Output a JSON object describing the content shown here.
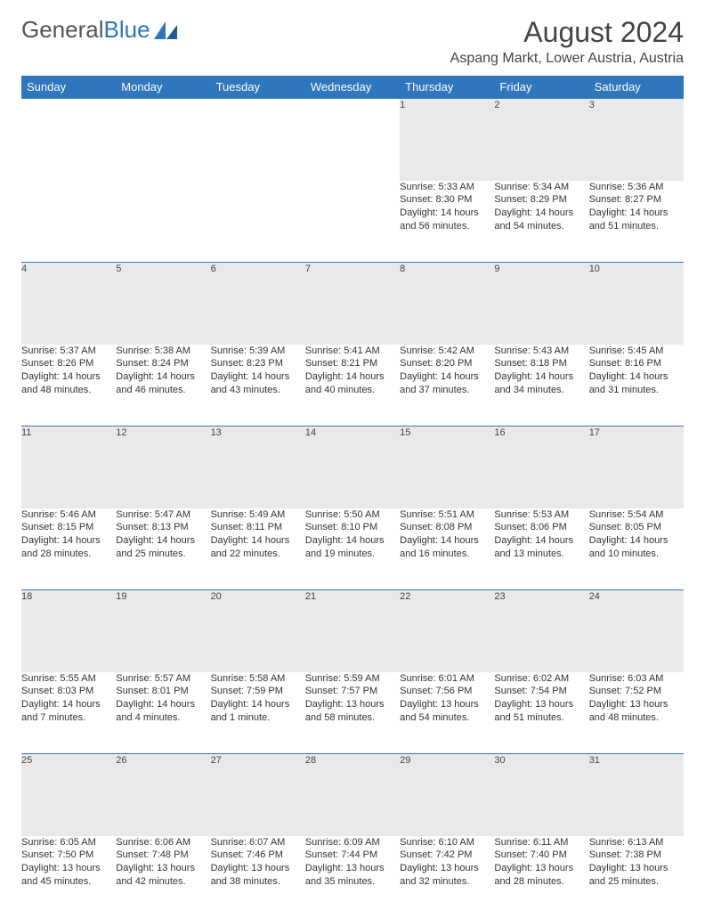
{
  "brand": {
    "text1": "General",
    "text2": "Blue"
  },
  "title": "August 2024",
  "location": "Aspang Markt, Lower Austria, Austria",
  "colors": {
    "header_bg": "#2f76bd",
    "header_text": "#ffffff",
    "daynum_bg": "#e9e9e9",
    "rule": "#2f76bd",
    "body_text": "#333333",
    "page_bg": "#ffffff"
  },
  "columns": [
    "Sunday",
    "Monday",
    "Tuesday",
    "Wednesday",
    "Thursday",
    "Friday",
    "Saturday"
  ],
  "weeks": [
    [
      null,
      null,
      null,
      null,
      {
        "n": "1",
        "sr": "Sunrise: 5:33 AM",
        "ss": "Sunset: 8:30 PM",
        "d1": "Daylight: 14 hours",
        "d2": "and 56 minutes."
      },
      {
        "n": "2",
        "sr": "Sunrise: 5:34 AM",
        "ss": "Sunset: 8:29 PM",
        "d1": "Daylight: 14 hours",
        "d2": "and 54 minutes."
      },
      {
        "n": "3",
        "sr": "Sunrise: 5:36 AM",
        "ss": "Sunset: 8:27 PM",
        "d1": "Daylight: 14 hours",
        "d2": "and 51 minutes."
      }
    ],
    [
      {
        "n": "4",
        "sr": "Sunrise: 5:37 AM",
        "ss": "Sunset: 8:26 PM",
        "d1": "Daylight: 14 hours",
        "d2": "and 48 minutes."
      },
      {
        "n": "5",
        "sr": "Sunrise: 5:38 AM",
        "ss": "Sunset: 8:24 PM",
        "d1": "Daylight: 14 hours",
        "d2": "and 46 minutes."
      },
      {
        "n": "6",
        "sr": "Sunrise: 5:39 AM",
        "ss": "Sunset: 8:23 PM",
        "d1": "Daylight: 14 hours",
        "d2": "and 43 minutes."
      },
      {
        "n": "7",
        "sr": "Sunrise: 5:41 AM",
        "ss": "Sunset: 8:21 PM",
        "d1": "Daylight: 14 hours",
        "d2": "and 40 minutes."
      },
      {
        "n": "8",
        "sr": "Sunrise: 5:42 AM",
        "ss": "Sunset: 8:20 PM",
        "d1": "Daylight: 14 hours",
        "d2": "and 37 minutes."
      },
      {
        "n": "9",
        "sr": "Sunrise: 5:43 AM",
        "ss": "Sunset: 8:18 PM",
        "d1": "Daylight: 14 hours",
        "d2": "and 34 minutes."
      },
      {
        "n": "10",
        "sr": "Sunrise: 5:45 AM",
        "ss": "Sunset: 8:16 PM",
        "d1": "Daylight: 14 hours",
        "d2": "and 31 minutes."
      }
    ],
    [
      {
        "n": "11",
        "sr": "Sunrise: 5:46 AM",
        "ss": "Sunset: 8:15 PM",
        "d1": "Daylight: 14 hours",
        "d2": "and 28 minutes."
      },
      {
        "n": "12",
        "sr": "Sunrise: 5:47 AM",
        "ss": "Sunset: 8:13 PM",
        "d1": "Daylight: 14 hours",
        "d2": "and 25 minutes."
      },
      {
        "n": "13",
        "sr": "Sunrise: 5:49 AM",
        "ss": "Sunset: 8:11 PM",
        "d1": "Daylight: 14 hours",
        "d2": "and 22 minutes."
      },
      {
        "n": "14",
        "sr": "Sunrise: 5:50 AM",
        "ss": "Sunset: 8:10 PM",
        "d1": "Daylight: 14 hours",
        "d2": "and 19 minutes."
      },
      {
        "n": "15",
        "sr": "Sunrise: 5:51 AM",
        "ss": "Sunset: 8:08 PM",
        "d1": "Daylight: 14 hours",
        "d2": "and 16 minutes."
      },
      {
        "n": "16",
        "sr": "Sunrise: 5:53 AM",
        "ss": "Sunset: 8:06 PM",
        "d1": "Daylight: 14 hours",
        "d2": "and 13 minutes."
      },
      {
        "n": "17",
        "sr": "Sunrise: 5:54 AM",
        "ss": "Sunset: 8:05 PM",
        "d1": "Daylight: 14 hours",
        "d2": "and 10 minutes."
      }
    ],
    [
      {
        "n": "18",
        "sr": "Sunrise: 5:55 AM",
        "ss": "Sunset: 8:03 PM",
        "d1": "Daylight: 14 hours",
        "d2": "and 7 minutes."
      },
      {
        "n": "19",
        "sr": "Sunrise: 5:57 AM",
        "ss": "Sunset: 8:01 PM",
        "d1": "Daylight: 14 hours",
        "d2": "and 4 minutes."
      },
      {
        "n": "20",
        "sr": "Sunrise: 5:58 AM",
        "ss": "Sunset: 7:59 PM",
        "d1": "Daylight: 14 hours",
        "d2": "and 1 minute."
      },
      {
        "n": "21",
        "sr": "Sunrise: 5:59 AM",
        "ss": "Sunset: 7:57 PM",
        "d1": "Daylight: 13 hours",
        "d2": "and 58 minutes."
      },
      {
        "n": "22",
        "sr": "Sunrise: 6:01 AM",
        "ss": "Sunset: 7:56 PM",
        "d1": "Daylight: 13 hours",
        "d2": "and 54 minutes."
      },
      {
        "n": "23",
        "sr": "Sunrise: 6:02 AM",
        "ss": "Sunset: 7:54 PM",
        "d1": "Daylight: 13 hours",
        "d2": "and 51 minutes."
      },
      {
        "n": "24",
        "sr": "Sunrise: 6:03 AM",
        "ss": "Sunset: 7:52 PM",
        "d1": "Daylight: 13 hours",
        "d2": "and 48 minutes."
      }
    ],
    [
      {
        "n": "25",
        "sr": "Sunrise: 6:05 AM",
        "ss": "Sunset: 7:50 PM",
        "d1": "Daylight: 13 hours",
        "d2": "and 45 minutes."
      },
      {
        "n": "26",
        "sr": "Sunrise: 6:06 AM",
        "ss": "Sunset: 7:48 PM",
        "d1": "Daylight: 13 hours",
        "d2": "and 42 minutes."
      },
      {
        "n": "27",
        "sr": "Sunrise: 6:07 AM",
        "ss": "Sunset: 7:46 PM",
        "d1": "Daylight: 13 hours",
        "d2": "and 38 minutes."
      },
      {
        "n": "28",
        "sr": "Sunrise: 6:09 AM",
        "ss": "Sunset: 7:44 PM",
        "d1": "Daylight: 13 hours",
        "d2": "and 35 minutes."
      },
      {
        "n": "29",
        "sr": "Sunrise: 6:10 AM",
        "ss": "Sunset: 7:42 PM",
        "d1": "Daylight: 13 hours",
        "d2": "and 32 minutes."
      },
      {
        "n": "30",
        "sr": "Sunrise: 6:11 AM",
        "ss": "Sunset: 7:40 PM",
        "d1": "Daylight: 13 hours",
        "d2": "and 28 minutes."
      },
      {
        "n": "31",
        "sr": "Sunrise: 6:13 AM",
        "ss": "Sunset: 7:38 PM",
        "d1": "Daylight: 13 hours",
        "d2": "and 25 minutes."
      }
    ]
  ]
}
